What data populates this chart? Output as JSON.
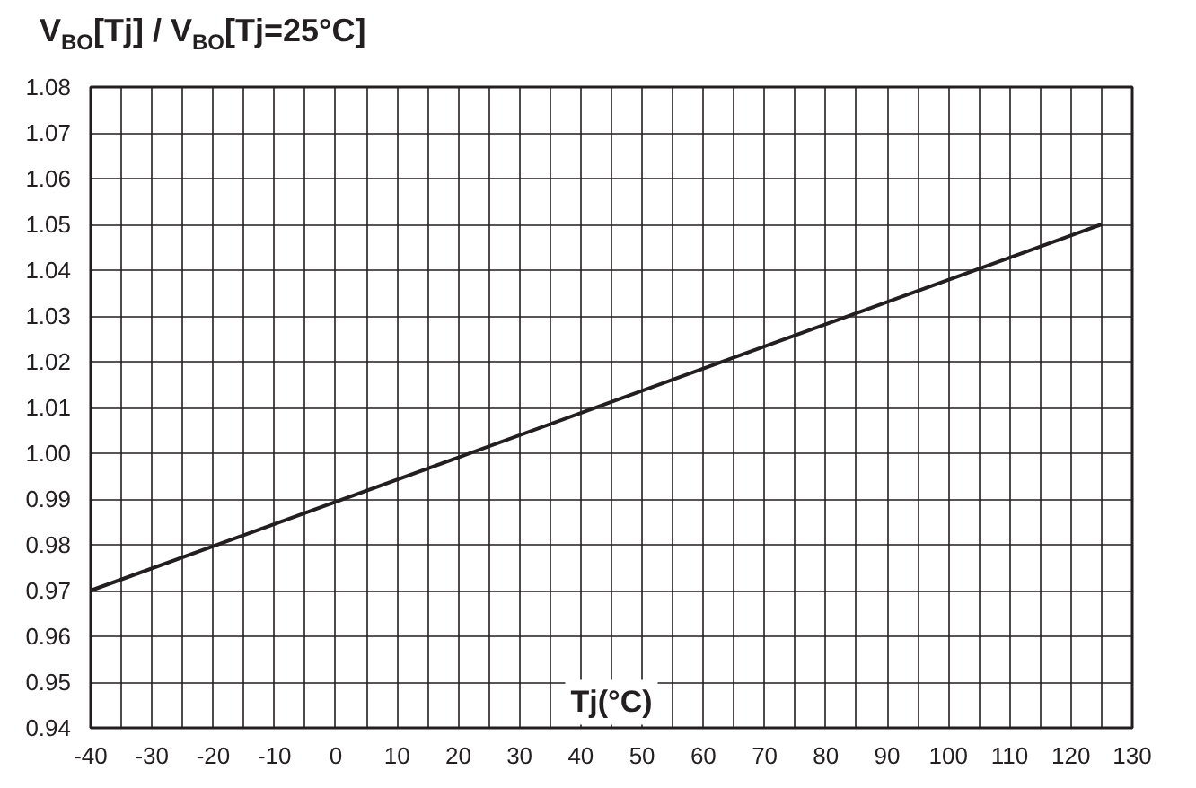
{
  "chart_data": {
    "type": "line",
    "title": "V$_{BO}$[Tj] / V$_{BO}$[Tj=25°C]",
    "xlabel": "Tj(°C)",
    "x": [
      -40,
      125
    ],
    "series": [
      {
        "color": "#231f20",
        "values": [
          0.97,
          1.05
        ]
      }
    ],
    "xlim": [
      -40,
      130
    ],
    "ylim": [
      0.94,
      1.08
    ],
    "xticks": [
      -40,
      {
        "value": -35,
        "label": null
      },
      -30,
      {
        "value": -25,
        "label": null
      },
      -20,
      {
        "value": -15,
        "label": null
      },
      -10,
      {
        "value": -5,
        "label": null
      },
      0,
      {
        "value": 5,
        "label": null
      },
      10,
      {
        "value": 15,
        "label": null
      },
      20,
      {
        "value": 25,
        "label": null
      },
      30,
      {
        "value": 35,
        "label": null
      },
      40,
      {
        "value": 45,
        "label": null
      },
      50,
      {
        "value": 55,
        "label": null
      },
      60,
      {
        "value": 65,
        "label": null
      },
      70,
      {
        "value": 75,
        "label": null
      },
      80,
      {
        "value": 85,
        "label": null
      },
      90,
      {
        "value": 95,
        "label": null
      },
      100,
      {
        "value": 105,
        "label": null
      },
      110,
      {
        "value": 115,
        "label": null
      },
      120,
      {
        "value": 125,
        "label": null
      },
      130
    ],
    "yticks": [
      0.94,
      0.95,
      0.96,
      0.97,
      0.98,
      0.99,
      {
        "value": 1,
        "label": "1.00"
      },
      1.01,
      1.02,
      1.03,
      1.04,
      1.05,
      1.06,
      1.07,
      1.08
    ],
    "grid": true,
    "marker": "none",
    "line_style": "solid"
  }
}
